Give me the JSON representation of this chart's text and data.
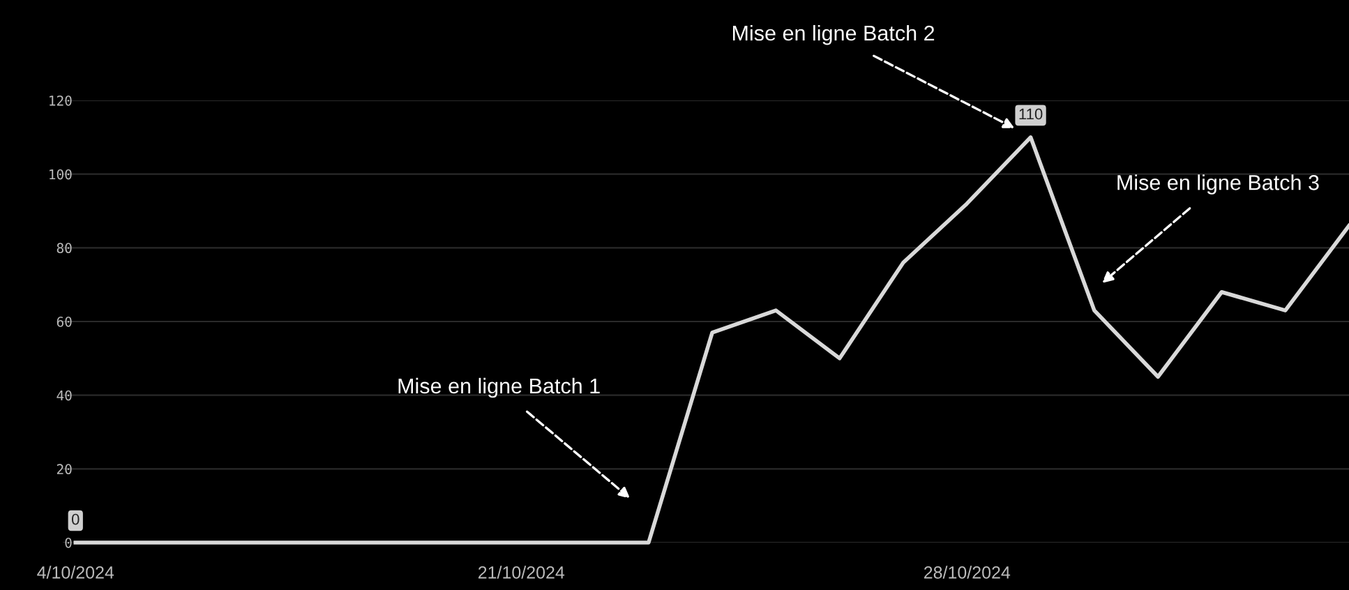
{
  "chart_data": {
    "type": "line",
    "categories": [
      "4/10/2024",
      null,
      null,
      null,
      null,
      null,
      null,
      "21/10/2024",
      null,
      null,
      null,
      null,
      null,
      null,
      "28/10/2024",
      null,
      null,
      null,
      null,
      null,
      null
    ],
    "series": [
      {
        "color": "#d9d9d9",
        "values": [
          0,
          0,
          0,
          0,
          0,
          0,
          0,
          0,
          0,
          0,
          57,
          63,
          50,
          76,
          92,
          110,
          63,
          45,
          68,
          63,
          86
        ],
        "value_labels": [
          "0",
          null,
          null,
          null,
          null,
          null,
          null,
          null,
          null,
          null,
          null,
          null,
          null,
          null,
          null,
          "110",
          null,
          null,
          null,
          null,
          null
        ]
      }
    ],
    "ylim": [
      0,
      120
    ],
    "yticks": [
      0,
      20,
      40,
      60,
      80,
      100,
      120
    ],
    "grid": "y",
    "marker": "none",
    "line_style": "solid",
    "annotations": [
      "Mise en ligne Batch 1",
      "Mise en ligne Batch 2",
      "Mise en ligne Batch 3"
    ]
  }
}
